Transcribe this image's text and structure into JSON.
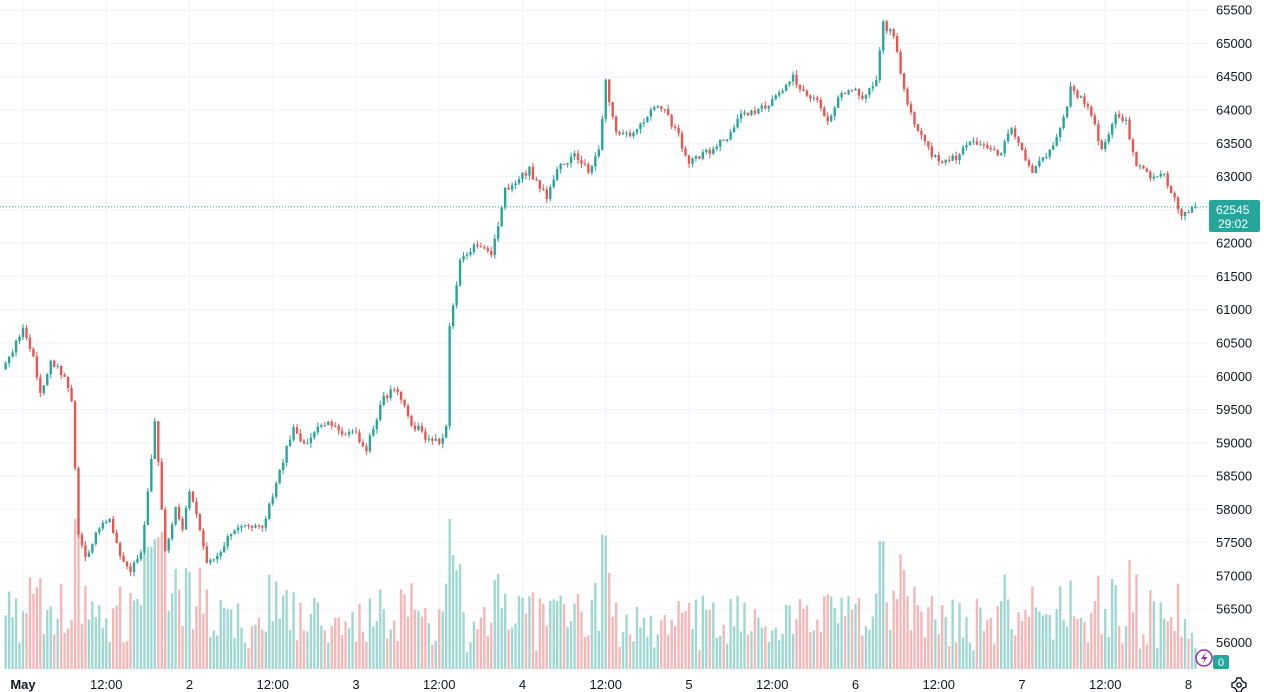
{
  "colors": {
    "up": "#26a69a",
    "down": "#ef5350",
    "up_volume": "#9fd8d2",
    "down_volume": "#f6b7b6",
    "grid": "#f0f3fa",
    "price_line": "#26a69a",
    "settings_icon": "#131722",
    "alert_icon": "#9c27b0"
  },
  "price_tag": {
    "price": "62545",
    "countdown": "29:02"
  },
  "volume_badge": {
    "value": "0"
  },
  "icons": {
    "settings": "gear-icon",
    "alert": "lightning-icon"
  },
  "chart_data": {
    "type": "candlestick",
    "y_axis": {
      "position": "right",
      "ylim": [
        55700,
        65600
      ],
      "ticks": [
        56000,
        56500,
        57000,
        57500,
        58000,
        58500,
        59000,
        59500,
        60000,
        60500,
        61000,
        61500,
        62000,
        62500,
        63000,
        63500,
        64000,
        64500,
        65000,
        65500
      ],
      "tick_labels": [
        "56000",
        "56500",
        "57000",
        "57500",
        "58000",
        "58500",
        "59000",
        "59500",
        "60000",
        "60500",
        "61000",
        "61500",
        "62000",
        "62500",
        "63000",
        "63500",
        "64000",
        "64500",
        "65000",
        "65500"
      ]
    },
    "x_axis": {
      "tick_labels": [
        "May",
        "12:00",
        "2",
        "12:00",
        "3",
        "12:00",
        "4",
        "12:00",
        "5",
        "12:00",
        "6",
        "12:00",
        "7",
        "12:00",
        "8"
      ],
      "tick_bold": [
        true,
        false,
        false,
        false,
        false,
        false,
        false,
        false,
        false,
        false,
        false,
        false,
        false,
        false,
        false
      ],
      "tick_hours": [
        0,
        12,
        24,
        36,
        48,
        60,
        72,
        84,
        96,
        108,
        120,
        132,
        144,
        156,
        168
      ]
    },
    "grid": true,
    "last_price": 62545,
    "price_path": {
      "interval_hours": 0.5,
      "start_hour": -2.5,
      "anchors": [
        [
          -2.5,
          60100
        ],
        [
          0.5,
          60700
        ],
        [
          2,
          60300
        ],
        [
          3,
          59700
        ],
        [
          4.5,
          60200
        ],
        [
          6.5,
          60000
        ],
        [
          7.5,
          59600
        ],
        [
          8.5,
          57600
        ],
        [
          9.5,
          57300
        ],
        [
          11,
          57600
        ],
        [
          13,
          57900
        ],
        [
          14.5,
          57300
        ],
        [
          16,
          57100
        ],
        [
          17.5,
          57300
        ],
        [
          19.5,
          59300
        ],
        [
          21,
          57400
        ],
        [
          22.5,
          58000
        ],
        [
          23.5,
          57700
        ],
        [
          24.5,
          58300
        ],
        [
          25.5,
          57900
        ],
        [
          27,
          57200
        ],
        [
          29,
          57400
        ],
        [
          31,
          57700
        ],
        [
          33,
          57800
        ],
        [
          35,
          57700
        ],
        [
          37.5,
          58600
        ],
        [
          39.5,
          59200
        ],
        [
          41,
          59000
        ],
        [
          43,
          59200
        ],
        [
          45,
          59300
        ],
        [
          46.5,
          59100
        ],
        [
          48,
          59200
        ],
        [
          50,
          58900
        ],
        [
          52.5,
          59700
        ],
        [
          54.5,
          59800
        ],
        [
          56.5,
          59300
        ],
        [
          58.5,
          59100
        ],
        [
          60.5,
          59000
        ],
        [
          61.5,
          59200
        ],
        [
          62,
          60700
        ],
        [
          63.5,
          61700
        ],
        [
          66,
          62000
        ],
        [
          68,
          61800
        ],
        [
          70,
          62800
        ],
        [
          72,
          63000
        ],
        [
          73.5,
          63100
        ],
        [
          74.5,
          62900
        ],
        [
          76,
          62700
        ],
        [
          78,
          63200
        ],
        [
          80,
          63300
        ],
        [
          82,
          63100
        ],
        [
          83.5,
          63400
        ],
        [
          84.5,
          64400
        ],
        [
          86,
          63700
        ],
        [
          88,
          63600
        ],
        [
          90,
          63800
        ],
        [
          92,
          64100
        ],
        [
          93.5,
          63900
        ],
        [
          95,
          63600
        ],
        [
          96.5,
          63200
        ],
        [
          98,
          63300
        ],
        [
          100,
          63400
        ],
        [
          102,
          63600
        ],
        [
          104,
          63900
        ],
        [
          106,
          64000
        ],
        [
          108,
          64100
        ],
        [
          110,
          64300
        ],
        [
          111.5,
          64500
        ],
        [
          113,
          64300
        ],
        [
          115,
          64100
        ],
        [
          116.5,
          63800
        ],
        [
          118,
          64200
        ],
        [
          120,
          64300
        ],
        [
          122,
          64200
        ],
        [
          123.5,
          64500
        ],
        [
          124.5,
          65300
        ],
        [
          126,
          65100
        ],
        [
          127.5,
          64300
        ],
        [
          129,
          63800
        ],
        [
          131,
          63400
        ],
        [
          133,
          63200
        ],
        [
          135,
          63300
        ],
        [
          137,
          63500
        ],
        [
          139,
          63500
        ],
        [
          141,
          63300
        ],
        [
          143,
          63700
        ],
        [
          144.5,
          63400
        ],
        [
          146,
          63100
        ],
        [
          148,
          63300
        ],
        [
          150,
          63700
        ],
        [
          151.5,
          64300
        ],
        [
          153,
          64200
        ],
        [
          154.5,
          63900
        ],
        [
          156,
          63400
        ],
        [
          158,
          63900
        ],
        [
          159.5,
          63800
        ],
        [
          161,
          63200
        ],
        [
          163,
          63000
        ],
        [
          165,
          63000
        ],
        [
          166.5,
          62700
        ],
        [
          167.5,
          62400
        ],
        [
          169,
          62545
        ]
      ]
    }
  }
}
